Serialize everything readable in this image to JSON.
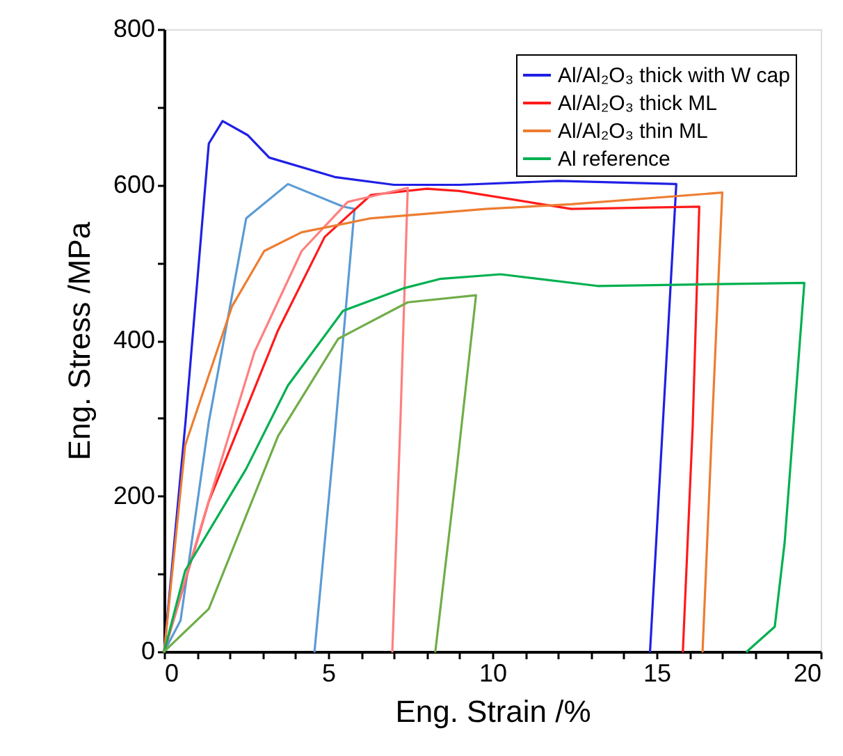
{
  "chart_data": {
    "type": "line",
    "xlabel": "Eng. Strain /%",
    "ylabel": "Eng. Stress /MPa",
    "xlim": [
      0,
      20
    ],
    "ylim": [
      0,
      800
    ],
    "xticks": [
      0,
      {
        "value": 1,
        "label": null
      },
      {
        "value": 2,
        "label": null
      },
      {
        "value": 3,
        "label": null
      },
      {
        "value": 4,
        "label": null
      },
      5,
      {
        "value": 6,
        "label": null
      },
      {
        "value": 7,
        "label": null
      },
      {
        "value": 8,
        "label": null
      },
      {
        "value": 9,
        "label": null
      },
      10,
      {
        "value": 11,
        "label": null
      },
      {
        "value": 12,
        "label": null
      },
      {
        "value": 13,
        "label": null
      },
      {
        "value": 14,
        "label": null
      },
      15,
      {
        "value": 16,
        "label": null
      },
      {
        "value": 17,
        "label": null
      },
      {
        "value": 18,
        "label": null
      },
      {
        "value": 19,
        "label": null
      },
      20
    ],
    "yticks": [
      0,
      {
        "value": 100,
        "label": null
      },
      200,
      {
        "value": 300,
        "label": null
      },
      400,
      {
        "value": 500,
        "label": null
      },
      600,
      {
        "value": 700,
        "label": null
      },
      800
    ],
    "grid": false,
    "legend": "top right",
    "marker": "none",
    "line_style": "solid",
    "series": [
      {
        "name": "Al/Al₂O₃ thick with W cap",
        "color": "#1f1fe6",
        "x": [
          0,
          0.65,
          1.36,
          1.78,
          2.54,
          3.2,
          5.2,
          7.0,
          9.0,
          12.0,
          15.6,
          15.2,
          14.8
        ],
        "values": [
          0,
          295,
          653,
          682,
          664,
          635,
          610,
          600,
          600,
          605,
          601,
          300,
          0
        ]
      },
      {
        "color": "#5b9bd5",
        "x": [
          0,
          0.5,
          1.36,
          2.5,
          3.77,
          5.45,
          5.8,
          5.2,
          4.58
        ],
        "values": [
          0,
          40,
          295,
          557,
          601,
          572,
          569,
          280,
          0
        ]
      },
      {
        "name": "Al/Al₂O₃ thick ML",
        "color": "#ff1a1a",
        "x": [
          0,
          1.36,
          3.47,
          4.89,
          6.3,
          8.0,
          9.0,
          12.4,
          16.3,
          16.1,
          15.8
        ],
        "values": [
          0,
          193,
          413,
          533,
          587,
          595,
          592,
          569,
          572,
          290,
          0
        ]
      },
      {
        "color": "#ff7f7f",
        "x": [
          0,
          1.06,
          2.75,
          4.19,
          5.59,
          7.42,
          7.2,
          6.95
        ],
        "values": [
          0,
          152,
          385,
          515,
          578,
          596,
          300,
          0
        ]
      },
      {
        "name": "Al/Al₂O₃ thin ML",
        "color": "#ed7d31",
        "x": [
          0,
          0.64,
          2.07,
          3.05,
          4.19,
          6.3,
          9.8,
          12.4,
          17.0,
          16.7,
          16.4
        ],
        "values": [
          0,
          265,
          444,
          515,
          539,
          557,
          569,
          575,
          590,
          300,
          0
        ]
      },
      {
        "name": "Al reference",
        "color": "#00b050",
        "x": [
          0,
          0.64,
          2.5,
          3.77,
          5.45,
          7.29,
          8.4,
          10.25,
          13.2,
          19.5,
          18.9,
          18.6,
          17.75
        ],
        "values": [
          0,
          104,
          235,
          342,
          438,
          467,
          479,
          485,
          470,
          474,
          140,
          32,
          0
        ]
      },
      {
        "color": "#70ad47",
        "x": [
          0,
          1.36,
          3.47,
          5.3,
          7.42,
          9.5,
          8.9,
          8.26
        ],
        "values": [
          0,
          55,
          277,
          402,
          449,
          458,
          230,
          0
        ]
      }
    ]
  }
}
